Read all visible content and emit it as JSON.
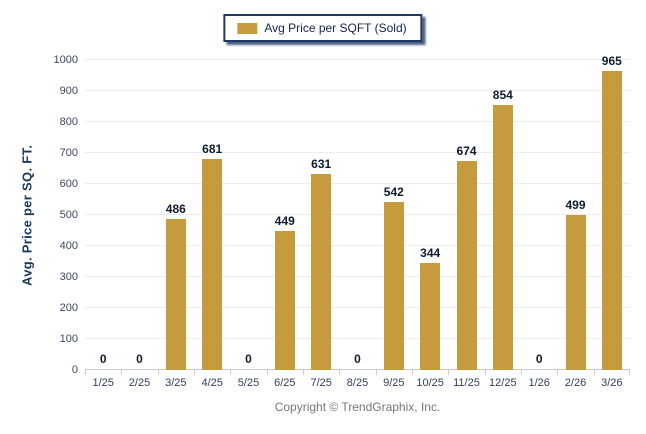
{
  "legend": {
    "label": "Avg Price per SQFT (Sold)"
  },
  "footer": {
    "copyright": "Copyright © TrendGraphix, Inc."
  },
  "chart_data": {
    "type": "bar",
    "title": "",
    "categories": [
      "1/25",
      "2/25",
      "3/25",
      "4/25",
      "5/25",
      "6/25",
      "7/25",
      "8/25",
      "9/25",
      "10/25",
      "11/25",
      "12/25",
      "1/26",
      "2/26",
      "3/26"
    ],
    "values": [
      0,
      0,
      486,
      681,
      0,
      449,
      631,
      0,
      542,
      344,
      674,
      854,
      0,
      499,
      965
    ],
    "xlabel": "",
    "ylabel": "Avg. Price per SQ. FT.",
    "ylim": [
      0,
      1000
    ],
    "ytick_step": 100,
    "grid": true,
    "legend_position": "top-center",
    "legend_entries": [
      "Avg Price per SQFT (Sold)"
    ],
    "bar_color": "#C59B3E",
    "value_labels_shown": true
  }
}
